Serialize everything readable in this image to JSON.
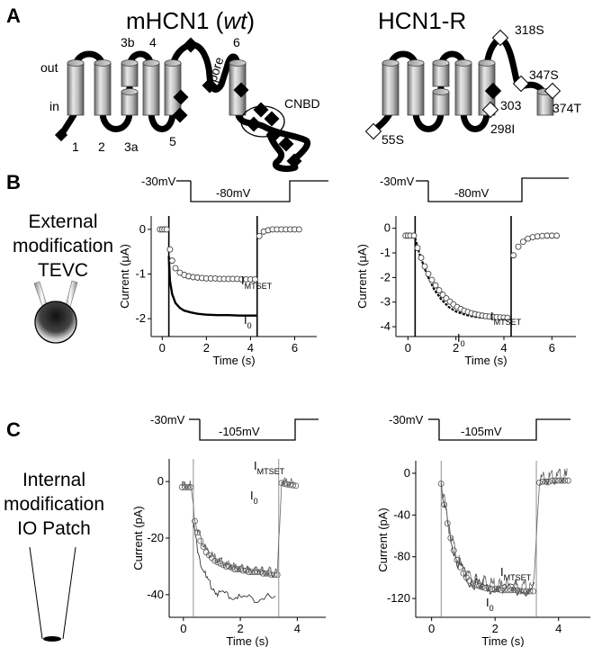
{
  "panels": {
    "A": "A",
    "B": "B",
    "C": "C"
  },
  "panel_a": {
    "wt_title_prefix": "mHCN1 (",
    "wt_title_italic": "wt",
    "wt_title_suffix": ")",
    "wt_labels": {
      "out": "out",
      "in": "in",
      "s1": "1",
      "s2": "2",
      "s3a": "3a",
      "s3b": "3b",
      "s4": "4",
      "s5": "5",
      "pore": "pore",
      "s6": "6",
      "cnbd": "CNBD"
    },
    "mut_title": "HCN1-R",
    "mut_sites": {
      "s318": "318S",
      "s347": "347S",
      "s374": "374T",
      "s303": "303",
      "s298": "298I",
      "s55": "55S"
    }
  },
  "panel_b": {
    "side_text": [
      "External",
      "modification",
      "TEVC"
    ],
    "protocol_hold": "-30mV",
    "protocol_step": "-80mV"
  },
  "panel_c": {
    "side_text": [
      "Internal",
      "modification",
      "IO Patch"
    ],
    "protocol_hold": "-30mV",
    "protocol_step": "-105mV"
  },
  "trace_labels": {
    "i_main": "I",
    "i_sub_mtset": "MTSET",
    "i_sub_0": "0"
  },
  "icon_names": [
    "oocyte-two-electrode-icon",
    "patch-pipette-icon"
  ],
  "chart_data": [
    {
      "type": "line",
      "id": "B-left",
      "xlabel": "Time (s)",
      "ylabel": "Current  (μA)",
      "xlim": [
        -0.5,
        7
      ],
      "ylim": [
        -2.4,
        0.3
      ],
      "xticks": [
        0,
        2,
        4,
        6
      ],
      "yticks": [
        0,
        -1,
        -2
      ],
      "xtick_labels": [
        "0",
        "2",
        "4",
        "6"
      ],
      "ytick_labels": [
        "0",
        "-1",
        "-2"
      ],
      "step_on": 0.3,
      "step_off": 4.3,
      "series": [
        {
          "label": "I0",
          "style": "line",
          "x": [
            0.3,
            0.35,
            0.45,
            0.6,
            0.8,
            1.0,
            1.3,
            1.6,
            2.0,
            2.5,
            3.0,
            3.5,
            4.0,
            4.3
          ],
          "y": [
            -0.6,
            -1.15,
            -1.45,
            -1.65,
            -1.76,
            -1.82,
            -1.86,
            -1.89,
            -1.91,
            -1.92,
            -1.92,
            -1.93,
            -1.93,
            -1.93
          ]
        },
        {
          "label": "IMTSET",
          "style": "open-circle",
          "x": [
            -0.1,
            0.0,
            0.1,
            0.2,
            0.35,
            0.45,
            0.6,
            0.8,
            1.0,
            1.2,
            1.4,
            1.6,
            1.8,
            2.0,
            2.2,
            2.4,
            2.6,
            2.8,
            3.0,
            3.2,
            3.4,
            3.6,
            3.8,
            4.0,
            4.2,
            4.4,
            4.6,
            4.8,
            5.0,
            5.2,
            5.4,
            5.6,
            5.8,
            6.0,
            6.2
          ],
          "y": [
            0.0,
            0.0,
            0.0,
            0.0,
            -0.45,
            -0.7,
            -0.87,
            -0.97,
            -1.02,
            -1.05,
            -1.07,
            -1.08,
            -1.09,
            -1.1,
            -1.1,
            -1.1,
            -1.11,
            -1.11,
            -1.11,
            -1.11,
            -1.11,
            -1.12,
            -1.12,
            -1.12,
            -1.12,
            -0.15,
            -0.05,
            -0.02,
            0.0,
            0.0,
            0.0,
            0.0,
            0.0,
            0.0,
            0.0
          ]
        }
      ]
    },
    {
      "type": "line",
      "id": "B-right",
      "xlabel": "Time (s)",
      "ylabel": "Current  (μA)",
      "xlim": [
        -0.5,
        7
      ],
      "ylim": [
        -4.4,
        0.5
      ],
      "xticks": [
        0,
        2,
        4,
        6
      ],
      "yticks": [
        0,
        -1,
        -2,
        -3,
        -4
      ],
      "xtick_labels": [
        "0",
        "2",
        "4",
        "6"
      ],
      "ytick_labels": [
        "0",
        "-1",
        "-2",
        "-3",
        "-4"
      ],
      "step_on": 0.3,
      "step_off": 4.3,
      "series": [
        {
          "label": "I0",
          "style": "line",
          "x": [
            0.3,
            0.5,
            0.8,
            1.1,
            1.4,
            1.7,
            2.0,
            2.4,
            2.8,
            3.2,
            3.6,
            4.0,
            4.3
          ],
          "y": [
            -0.4,
            -1.1,
            -1.9,
            -2.5,
            -2.9,
            -3.2,
            -3.38,
            -3.52,
            -3.6,
            -3.64,
            -3.67,
            -3.68,
            -3.68
          ]
        },
        {
          "label": "IMTSET",
          "style": "open-circle",
          "x": [
            -0.1,
            0.0,
            0.1,
            0.25,
            0.4,
            0.55,
            0.7,
            0.85,
            1.0,
            1.15,
            1.3,
            1.45,
            1.6,
            1.75,
            1.9,
            2.05,
            2.2,
            2.35,
            2.5,
            2.65,
            2.8,
            2.95,
            3.1,
            3.25,
            3.4,
            3.55,
            3.7,
            3.85,
            4.0,
            4.15,
            4.4,
            4.6,
            4.8,
            5.0,
            5.2,
            5.4,
            5.6,
            5.8,
            6.0,
            6.2
          ],
          "y": [
            -0.3,
            -0.3,
            -0.3,
            -0.3,
            -0.8,
            -1.2,
            -1.55,
            -1.85,
            -2.1,
            -2.32,
            -2.52,
            -2.7,
            -2.85,
            -2.98,
            -3.1,
            -3.2,
            -3.28,
            -3.35,
            -3.4,
            -3.45,
            -3.49,
            -3.52,
            -3.55,
            -3.57,
            -3.59,
            -3.6,
            -3.61,
            -3.62,
            -3.63,
            -3.64,
            -1.1,
            -0.75,
            -0.55,
            -0.42,
            -0.36,
            -0.33,
            -0.31,
            -0.3,
            -0.3,
            -0.3
          ]
        }
      ]
    },
    {
      "type": "line",
      "id": "C-left",
      "xlabel": "Time (s)",
      "ylabel": "Current (pA)",
      "xlim": [
        -0.5,
        5
      ],
      "ylim": [
        -48,
        8
      ],
      "xticks": [
        0,
        2,
        4
      ],
      "yticks": [
        0,
        -20,
        -40
      ],
      "xtick_labels": [
        "0",
        "2",
        "4"
      ],
      "ytick_labels": [
        "0",
        "-20",
        "-40"
      ],
      "step_on": 0.35,
      "step_off": 3.35,
      "series": [
        {
          "label": "I0",
          "style": "noisy-line",
          "x": [
            0.35,
            0.45,
            0.6,
            0.8,
            1.0,
            1.2,
            1.5,
            1.8,
            2.1,
            2.5,
            2.9,
            3.3
          ],
          "y": [
            -16,
            -22,
            -29,
            -35,
            -38,
            -40,
            -41,
            -41.5,
            -42,
            -42,
            -42,
            -42
          ]
        },
        {
          "label": "IMTSET",
          "style": "noisy-line-circle",
          "x": [
            -0.05,
            0.05,
            0.15,
            0.25,
            0.4,
            0.5,
            0.6,
            0.7,
            0.8,
            0.9,
            1.0,
            1.1,
            1.2,
            1.3,
            1.4,
            1.5,
            1.6,
            1.7,
            1.8,
            1.9,
            2.0,
            2.1,
            2.2,
            2.3,
            2.4,
            2.5,
            2.6,
            2.7,
            2.8,
            2.9,
            3.0,
            3.1,
            3.2,
            3.3,
            3.45,
            3.55,
            3.65,
            3.75,
            3.85,
            3.95
          ],
          "y": [
            -2,
            -2,
            -2,
            -2,
            -14,
            -18,
            -21,
            -23,
            -25,
            -26,
            -27,
            -28,
            -28.5,
            -29,
            -29.5,
            -30,
            -30,
            -30.5,
            -31,
            -31,
            -31,
            -31.5,
            -31.5,
            -32,
            -32,
            -32,
            -32,
            -32,
            -32.5,
            -32.5,
            -32.5,
            -33,
            -33,
            -33,
            -0.5,
            -0.8,
            -1.0,
            -1.2,
            -1.3,
            -1.5
          ]
        }
      ]
    },
    {
      "type": "line",
      "id": "C-right",
      "xlabel": "Time (s)",
      "ylabel": "Current (pA)",
      "xlim": [
        -0.5,
        5
      ],
      "ylim": [
        -138,
        12
      ],
      "xticks": [
        0,
        2,
        4
      ],
      "yticks": [
        0,
        -40,
        -80,
        -120
      ],
      "xtick_labels": [
        "0",
        "2",
        "4"
      ],
      "ytick_labels": [
        "0",
        "-40",
        "-80",
        "-120"
      ],
      "step_on": 0.3,
      "step_off": 3.3,
      "series": [
        {
          "label": "I0",
          "style": "noisy-line",
          "x": [
            0.3,
            0.45,
            0.6,
            0.8,
            1.0,
            1.2,
            1.5,
            1.8,
            2.1,
            2.5,
            2.9,
            3.3
          ],
          "y": [
            -12,
            -42,
            -66,
            -86,
            -98,
            -106,
            -111,
            -113,
            -114,
            -115,
            -115,
            -115
          ]
        },
        {
          "label": "IMTSET",
          "style": "noisy-line-circle",
          "x": [
            0.3,
            0.4,
            0.5,
            0.6,
            0.7,
            0.8,
            0.9,
            1.0,
            1.1,
            1.2,
            1.3,
            1.4,
            1.5,
            1.6,
            1.7,
            1.8,
            1.9,
            2.0,
            2.1,
            2.2,
            2.3,
            2.4,
            2.5,
            2.6,
            2.7,
            2.8,
            2.9,
            3.0,
            3.1,
            3.2,
            3.4,
            3.5,
            3.6,
            3.7,
            3.8,
            3.9,
            4.0,
            4.1,
            4.2,
            4.3
          ],
          "y": [
            -10,
            -30,
            -48,
            -62,
            -74,
            -83,
            -90,
            -96,
            -100,
            -103,
            -106,
            -107,
            -108,
            -109,
            -110,
            -110,
            -111,
            -111,
            -111,
            -112,
            -112,
            -112,
            -112,
            -112,
            -112,
            -113,
            -113,
            -113,
            -113,
            -113,
            -9,
            -8,
            -8,
            -8,
            -7,
            -7,
            -7,
            -7,
            -7,
            -7
          ]
        }
      ]
    }
  ]
}
